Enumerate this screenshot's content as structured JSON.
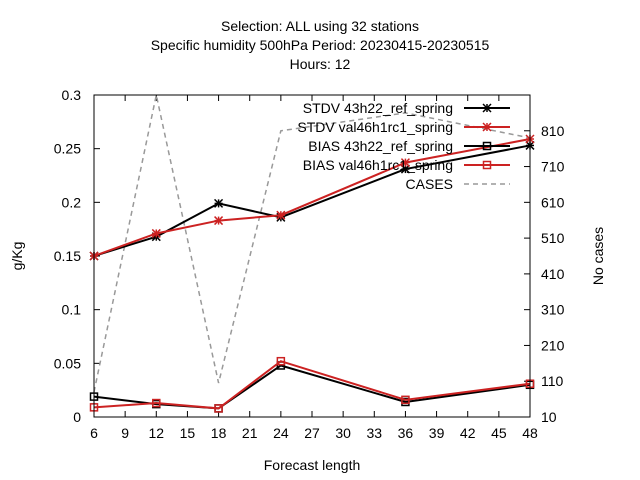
{
  "chart_data": {
    "type": "line",
    "title_lines": [
      "Selection: ALL using    32 stations",
      "Specific humidity 500hPa   Period: 20230415-20230515",
      "Hours:  12"
    ],
    "xlabel": "Forecast length",
    "ylabel": "g/Kg",
    "y2label": "No cases",
    "xlim": [
      6,
      48
    ],
    "ylim": [
      0,
      0.3
    ],
    "y2lim": [
      10,
      910
    ],
    "x_ticks": [
      6,
      9,
      12,
      15,
      18,
      21,
      24,
      27,
      30,
      33,
      36,
      39,
      42,
      45,
      48
    ],
    "y_ticks": [
      0,
      0.05,
      0.1,
      0.15,
      0.2,
      0.25,
      0.3
    ],
    "y_tick_labels": [
      "0",
      "0.05",
      "0.1",
      "0.15",
      "0.2",
      "0.25",
      "0.3"
    ],
    "y2_ticks": [
      10,
      110,
      210,
      310,
      410,
      510,
      610,
      710,
      810
    ],
    "legend_position": "top-right",
    "series": [
      {
        "name": "STDV 43h22_ref_spring",
        "color": "#000000",
        "marker": "star",
        "dashed": false,
        "axis": "y",
        "x": [
          6,
          12,
          18,
          24,
          36,
          48
        ],
        "values": [
          0.15,
          0.168,
          0.199,
          0.186,
          0.231,
          0.253
        ]
      },
      {
        "name": "STDV val46h1rc1_spring",
        "color": "#cc2222",
        "marker": "star",
        "dashed": false,
        "axis": "y",
        "x": [
          6,
          12,
          18,
          24,
          36,
          48
        ],
        "values": [
          0.15,
          0.171,
          0.183,
          0.188,
          0.237,
          0.259
        ]
      },
      {
        "name": "BIAS 43h22_ref_spring",
        "color": "#000000",
        "marker": "square",
        "dashed": false,
        "axis": "y",
        "x": [
          6,
          12,
          18,
          24,
          36,
          48
        ],
        "values": [
          0.019,
          0.012,
          0.008,
          0.048,
          0.014,
          0.03
        ]
      },
      {
        "name": "BIAS val46h1rc1_spring",
        "color": "#cc2222",
        "marker": "square",
        "dashed": false,
        "axis": "y",
        "x": [
          6,
          12,
          18,
          24,
          36,
          48
        ],
        "values": [
          0.009,
          0.013,
          0.008,
          0.052,
          0.016,
          0.031
        ]
      },
      {
        "name": "CASES",
        "color": "#999999",
        "marker": "none",
        "dashed": true,
        "axis": "y2",
        "x": [
          6,
          12,
          18,
          24,
          36,
          48
        ],
        "values": [
          80,
          910,
          105,
          810,
          860,
          790
        ]
      }
    ]
  }
}
